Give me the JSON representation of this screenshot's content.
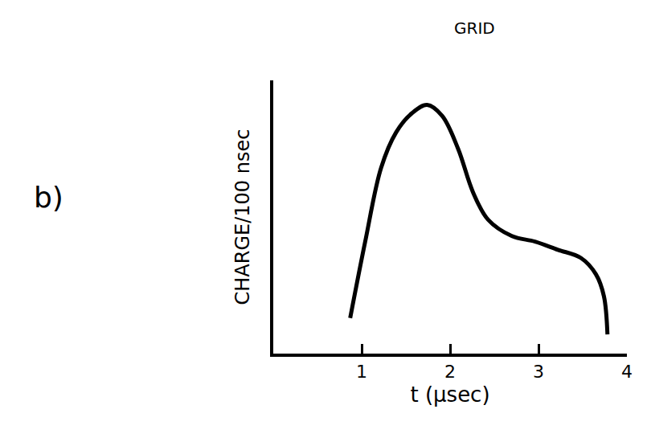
{
  "chart_data": {
    "type": "line",
    "x_label": "t (μsec)",
    "y_label": "CHARGE/100 nsec",
    "annotations": [
      {
        "text": "b)"
      },
      {
        "text": "GRID"
      }
    ],
    "x": [
      0.87,
      1.04,
      1.22,
      1.39,
      1.57,
      1.74,
      1.91,
      2.09,
      2.26,
      2.43,
      2.7,
      2.96,
      3.22,
      3.48,
      3.65,
      3.74,
      3.78
    ],
    "values": [
      13,
      41,
      68,
      81,
      88,
      91,
      87,
      75,
      59,
      49,
      43,
      41,
      38,
      35,
      29,
      21,
      7
    ],
    "color": "#000000",
    "xlim": [
      0,
      4
    ],
    "xticks": [
      1,
      2,
      3,
      4
    ],
    "ylim": [
      0,
      100
    ],
    "yticks": [],
    "tick_labels": "x",
    "grid": false
  }
}
